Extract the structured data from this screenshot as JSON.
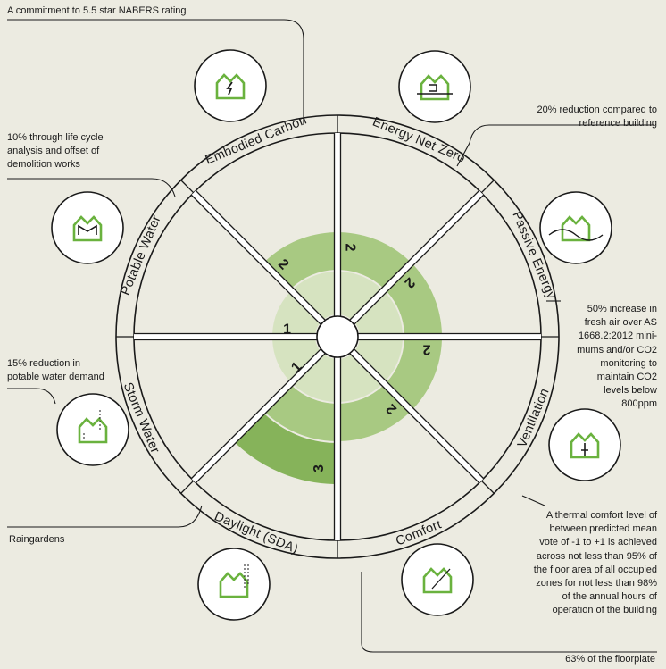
{
  "categories": [
    {
      "id": "energy-net-zero",
      "label": "Energy Net Zero",
      "score": 2,
      "icon": "house-energy-cycle-icon"
    },
    {
      "id": "passive-energy",
      "label": "Passive Energy",
      "score": 2,
      "icon": "house-heat-recovery-icon"
    },
    {
      "id": "ventilation",
      "label": "Ventilation",
      "score": 2,
      "icon": "house-airflow-icon"
    },
    {
      "id": "comfort",
      "label": "Comfort",
      "score": 2,
      "icon": "house-thermometer-icon"
    },
    {
      "id": "daylight",
      "label": "Daylight (SDA)",
      "score": 3,
      "icon": "house-sun-icon"
    },
    {
      "id": "storm-water",
      "label": "Storm Water",
      "score": 1,
      "icon": "house-raingarden-icon"
    },
    {
      "id": "potable-water",
      "label": "Potable Water",
      "score": 1,
      "icon": "house-water-tank-icon"
    },
    {
      "id": "embodied-carbon",
      "label": "Embodied Carbon",
      "score": 2,
      "icon": "house-carbon-cycle-icon"
    }
  ],
  "max_score": 3,
  "notes": {
    "nabers": "A commitment to 5.5 star NABERS rating",
    "reference_reduction": [
      "20% reduction compared to",
      "reference building"
    ],
    "life_cycle": [
      "10% through life cycle",
      "analysis and offset of",
      "demolition works"
    ],
    "fresh_air": [
      "50% increase in",
      "fresh air over AS",
      "1668.2:2012 mini-",
      "mums and/or CO2",
      "monitoring to",
      "maintain CO2",
      "levels below",
      "800ppm"
    ],
    "potable_water": [
      "15% reduction in",
      "potable water demand"
    ],
    "raingardens": "Raingardens",
    "thermal_comfort": [
      "A thermal comfort level of",
      "between predicted mean",
      "vote of -1 to +1 is achieved",
      "across not less than 95% of",
      "the floor area of all occupied",
      "zones for not less than 98%",
      "of the annual hours of",
      "operation of the building"
    ],
    "floorplate": "63% of the floorplate"
  },
  "colors": {
    "background": "#ecebe1",
    "level1": "#d6e3c0",
    "level2": "#a8c982",
    "level3": "#86b35a",
    "icon_green": "#6ab23e",
    "stroke": "#1a1a1a"
  }
}
